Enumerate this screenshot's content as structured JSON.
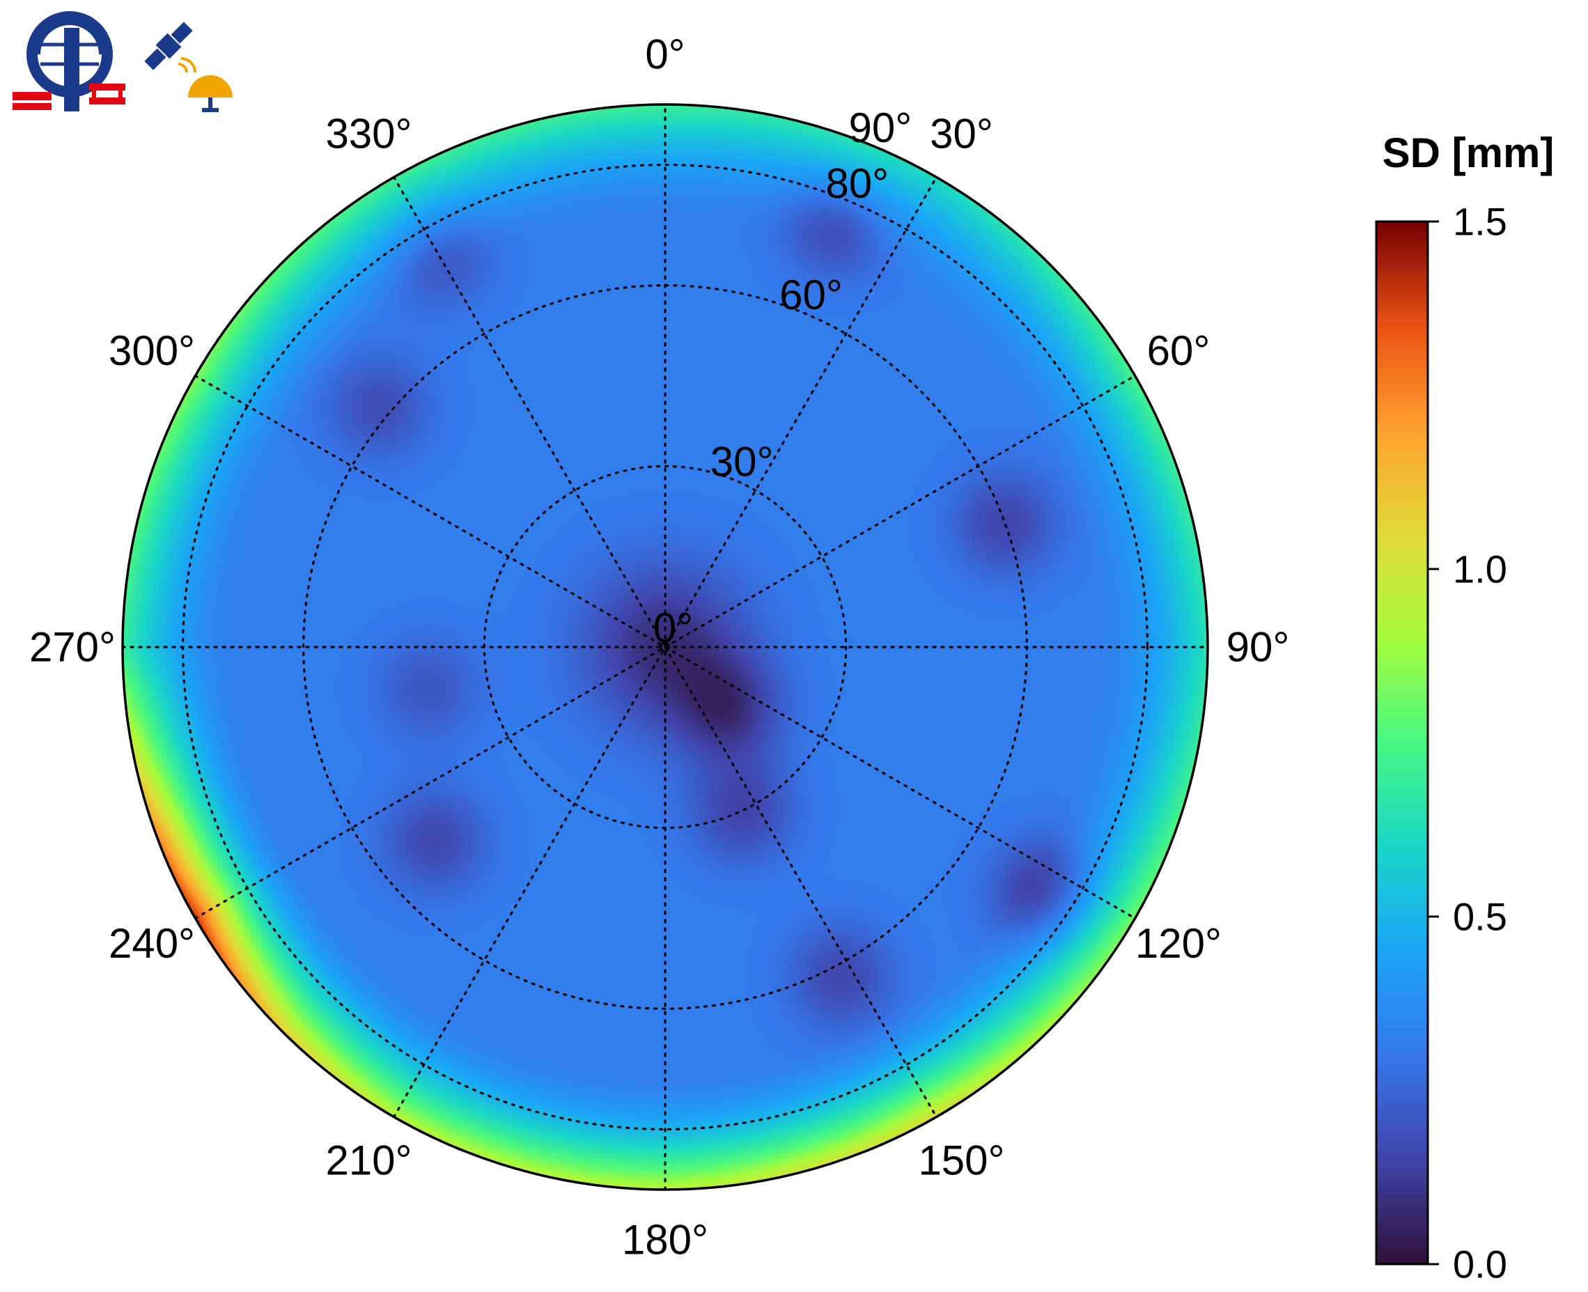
{
  "logos": [
    {
      "name": "institute-logo",
      "icon": "globe-GP-logo"
    },
    {
      "name": "gnss-logo",
      "icon": "satellite-antenna-icon"
    }
  ],
  "chart_data": {
    "type": "heatmap",
    "projection": "polar-skyplot",
    "azimuth_direction": "clockwise-from-top",
    "azimuth_ticks": [
      "0°",
      "30°",
      "60°",
      "90°",
      "120°",
      "150°",
      "180°",
      "210°",
      "240°",
      "270°",
      "300°",
      "330°"
    ],
    "zenith_ticks": [
      "0°",
      "30°",
      "60°",
      "80°",
      "90°"
    ],
    "zenith_range": [
      0,
      90
    ],
    "grid": true,
    "grid_style": "dotted",
    "colorbar": {
      "label": "SD [mm]",
      "range": [
        0.0,
        1.5
      ],
      "ticks": [
        "0.0",
        "0.5",
        "1.0",
        "1.5"
      ],
      "colormap": "turbo",
      "position": "right"
    },
    "field_sd_mm": {
      "background": 0.32,
      "center": {
        "zenith": 0,
        "value": 0.08
      },
      "low_regions": [
        {
          "azimuth": 135,
          "zenith": 15,
          "value": 0.1
        },
        {
          "azimuth": 155,
          "zenith": 30,
          "value": 0.12
        },
        {
          "azimuth": 230,
          "zenith": 50,
          "value": 0.13
        },
        {
          "azimuth": 260,
          "zenith": 40,
          "value": 0.18
        },
        {
          "azimuth": 310,
          "zenith": 62,
          "value": 0.15
        },
        {
          "azimuth": 330,
          "zenith": 75,
          "value": 0.17
        },
        {
          "azimuth": 22,
          "zenith": 76,
          "value": 0.12
        },
        {
          "azimuth": 70,
          "zenith": 60,
          "value": 0.12
        },
        {
          "azimuth": 123,
          "zenith": 75,
          "value": 0.08
        },
        {
          "azimuth": 152,
          "zenith": 62,
          "value": 0.13
        }
      ],
      "rim_values": [
        {
          "azimuth": 0,
          "value": 0.72
        },
        {
          "azimuth": 30,
          "value": 0.62
        },
        {
          "azimuth": 60,
          "value": 0.75
        },
        {
          "azimuth": 90,
          "value": 0.65
        },
        {
          "azimuth": 120,
          "value": 0.82
        },
        {
          "azimuth": 150,
          "value": 1.05
        },
        {
          "azimuth": 165,
          "value": 1.02
        },
        {
          "azimuth": 180,
          "value": 0.95
        },
        {
          "azimuth": 210,
          "value": 0.95
        },
        {
          "azimuth": 225,
          "value": 1.1
        },
        {
          "azimuth": 240,
          "value": 1.42
        },
        {
          "azimuth": 250,
          "value": 1.25
        },
        {
          "azimuth": 270,
          "value": 0.7
        },
        {
          "azimuth": 300,
          "value": 0.85
        },
        {
          "azimuth": 330,
          "value": 0.72
        }
      ]
    }
  }
}
